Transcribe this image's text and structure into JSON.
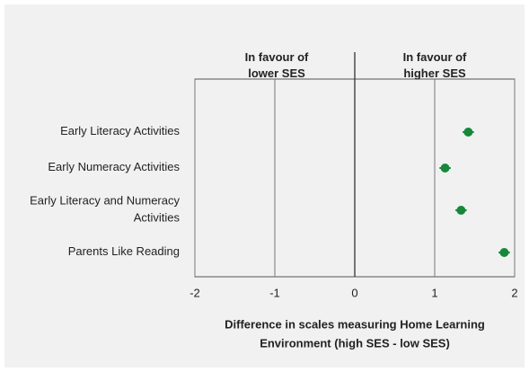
{
  "chart_data": {
    "type": "dot",
    "categories": [
      "Early Literacy Activities",
      "Early Numeracy Activities",
      "Early Literacy and Numeracy Activities",
      "Parents Like Reading"
    ],
    "series": [
      {
        "color": "#17873a",
        "values": [
          1.42,
          1.13,
          1.33,
          1.87
        ],
        "errors": [
          0.07,
          0.07,
          0.07,
          0.07
        ]
      }
    ],
    "xlim": [
      -2,
      2
    ],
    "xticks": [
      -2,
      -1,
      0,
      1,
      2
    ],
    "grid": true,
    "xlabel": "Difference in scales measuring Home Learning Environment (high SES - low SES)",
    "annotations": [
      {
        "text": "In favour of lower SES",
        "x": -1
      },
      {
        "text": "In favour of higher SES",
        "x": 1
      }
    ]
  }
}
